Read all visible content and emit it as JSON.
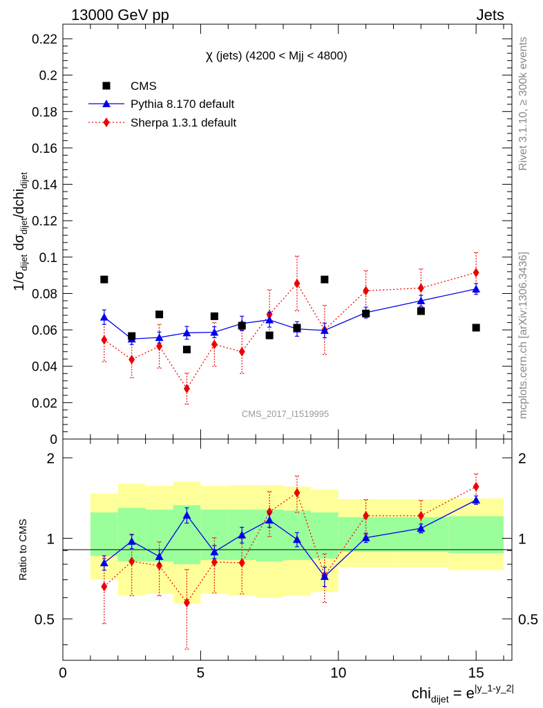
{
  "header": {
    "left": "13000 GeV pp",
    "right": "Jets"
  },
  "side_labels": {
    "rivet": "Rivet 3.1.10, ≥ 300k events",
    "mcplots": "mcplots.cern.ch [arXiv:1306.3436]"
  },
  "chart_data": [
    {
      "type": "scatter",
      "title_prefix": "χ",
      "title_rest": " (jets) (4200 < Mjj < 4800)",
      "watermark": "CMS_2017_I1519995",
      "ylabel": "1/σ_dijet dσ_dijet/dchi_dijet",
      "ylim": [
        0,
        0.228
      ],
      "yticks": [
        "0",
        "0.02",
        "0.04",
        "0.06",
        "0.08",
        "0.1",
        "0.12",
        "0.14",
        "0.16",
        "0.18",
        "0.2",
        "0.22"
      ],
      "xlim": [
        0,
        16.3
      ],
      "legend_position": "top-left",
      "bins": [
        [
          1,
          2
        ],
        [
          2,
          3
        ],
        [
          3,
          4
        ],
        [
          4,
          5
        ],
        [
          5,
          6
        ],
        [
          6,
          7
        ],
        [
          7,
          8
        ],
        [
          8,
          9
        ],
        [
          9,
          10
        ],
        [
          10,
          12
        ],
        [
          12,
          14
        ],
        [
          14,
          16
        ]
      ],
      "series": [
        {
          "name": "CMS",
          "color": "#000000",
          "marker": "square",
          "x": [
            1.5,
            2.5,
            3.5,
            4.5,
            5.5,
            6.5,
            7.5,
            8.5,
            9.5,
            11,
            13,
            15
          ],
          "values": [
            0.0877,
            0.0566,
            0.0685,
            0.0492,
            0.0675,
            0.0623,
            0.057,
            0.0612,
            0.0877,
            0.069,
            0.0703,
            0.0612
          ]
        },
        {
          "name": "Pythia 8.170 default",
          "color": "#0000ee",
          "marker": "triangle",
          "line": "solid",
          "x": [
            1.5,
            2.5,
            3.5,
            4.5,
            5.5,
            6.5,
            7.5,
            8.5,
            9.5,
            11,
            13,
            15
          ],
          "values": [
            0.067,
            0.055,
            0.0558,
            0.0584,
            0.0587,
            0.0635,
            0.0655,
            0.0605,
            0.0597,
            0.0695,
            0.076,
            0.0825
          ],
          "errors": [
            0.004,
            0.003,
            0.003,
            0.0035,
            0.003,
            0.004,
            0.004,
            0.004,
            0.004,
            0.003,
            0.003,
            0.003
          ]
        },
        {
          "name": "Sherpa 1.3.1 default",
          "color": "#ee0000",
          "marker": "diamond",
          "line": "dotted",
          "x": [
            1.5,
            2.5,
            3.5,
            4.5,
            5.5,
            6.5,
            7.5,
            8.5,
            9.5,
            11,
            13,
            15
          ],
          "values": [
            0.0545,
            0.0437,
            0.051,
            0.0277,
            0.052,
            0.048,
            0.0685,
            0.0855,
            0.06,
            0.0815,
            0.083,
            0.0915
          ],
          "errors": [
            0.012,
            0.01,
            0.012,
            0.0085,
            0.012,
            0.012,
            0.0135,
            0.015,
            0.0135,
            0.011,
            0.0105,
            0.011
          ]
        }
      ]
    },
    {
      "type": "scatter",
      "ylabel": "Ratio to CMS",
      "xlabel": "chi_dijet = e^|y_1-y_2|",
      "ylim": [
        0.35,
        2.35
      ],
      "yscale": "log",
      "yticks": [
        "0.5",
        "1",
        "2"
      ],
      "xlim": [
        0,
        16.3
      ],
      "xticks": [
        "0",
        "5",
        "10",
        "15"
      ],
      "bands": {
        "yellow_color": "#ffff9a",
        "green_color": "#9aff9a",
        "yellow_lo": [
          0.7,
          0.61,
          0.62,
          0.57,
          0.62,
          0.61,
          0.6,
          0.61,
          0.63,
          0.78,
          0.78,
          0.76
        ],
        "yellow_hi": [
          1.47,
          1.6,
          1.57,
          1.63,
          1.57,
          1.58,
          1.58,
          1.56,
          1.52,
          1.4,
          1.4,
          1.41
        ],
        "green_lo": [
          0.86,
          0.82,
          0.82,
          0.8,
          0.83,
          0.83,
          0.82,
          0.83,
          0.84,
          0.89,
          0.89,
          0.88
        ],
        "green_hi": [
          1.25,
          1.3,
          1.28,
          1.33,
          1.28,
          1.28,
          1.28,
          1.27,
          1.25,
          1.2,
          1.2,
          1.21
        ]
      },
      "series": [
        {
          "name": "Pythia 8.170 default",
          "color": "#0000ee",
          "values": [
            0.81,
            0.975,
            0.855,
            1.22,
            0.89,
            1.03,
            1.17,
            0.99,
            0.72,
            1.005,
            1.09,
            1.39
          ],
          "errors": [
            0.05,
            0.06,
            0.05,
            0.08,
            0.05,
            0.07,
            0.07,
            0.06,
            0.06,
            0.04,
            0.04,
            0.05
          ]
        },
        {
          "name": "Sherpa 1.3.1 default",
          "color": "#ee0000",
          "values": [
            0.66,
            0.82,
            0.79,
            0.575,
            0.815,
            0.81,
            1.255,
            1.48,
            0.725,
            1.215,
            1.215,
            1.56
          ],
          "errors": [
            0.18,
            0.21,
            0.18,
            0.19,
            0.19,
            0.19,
            0.24,
            0.23,
            0.15,
            0.18,
            0.17,
            0.18
          ]
        }
      ]
    }
  ]
}
